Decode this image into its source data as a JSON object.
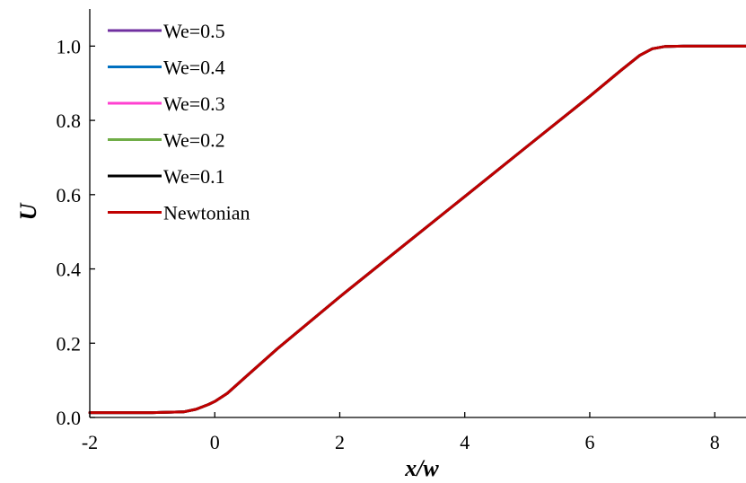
{
  "chart_data": {
    "type": "line",
    "title": "",
    "xlabel": "x/w",
    "ylabel": "U",
    "xlim": [
      -2,
      8.5
    ],
    "ylim": [
      0,
      1.1
    ],
    "xticks": [
      -2,
      0,
      2,
      4,
      6,
      8
    ],
    "yticks": [
      0.0,
      0.2,
      0.4,
      0.6,
      0.8,
      1.0
    ],
    "xtick_labels": [
      "-2",
      "0",
      "2",
      "4",
      "6",
      "8"
    ],
    "ytick_labels": [
      "0.0",
      "0.2",
      "0.4",
      "0.6",
      "0.8",
      "1.0"
    ],
    "grid": false,
    "legend_position": "top-left",
    "series": [
      {
        "name": "We=0.5",
        "color": "#7030a0",
        "x": [
          -2,
          -1,
          -0.5,
          -0.3,
          -0.1,
          0,
          0.2,
          0.5,
          1,
          2,
          3,
          4,
          5,
          6,
          6.5,
          6.8,
          7.0,
          7.2,
          7.5,
          8,
          8.5
        ],
        "y": [
          0.013,
          0.013,
          0.015,
          0.022,
          0.035,
          0.043,
          0.065,
          0.11,
          0.185,
          0.325,
          0.46,
          0.595,
          0.73,
          0.865,
          0.935,
          0.975,
          0.993,
          0.999,
          1.0,
          1.0,
          1.0
        ]
      },
      {
        "name": "We=0.4",
        "color": "#0070c0",
        "x": [
          -2,
          -1,
          -0.5,
          -0.3,
          -0.1,
          0,
          0.2,
          0.5,
          1,
          2,
          3,
          4,
          5,
          6,
          6.5,
          6.8,
          7.0,
          7.2,
          7.5,
          8,
          8.5
        ],
        "y": [
          0.013,
          0.013,
          0.015,
          0.022,
          0.035,
          0.043,
          0.065,
          0.11,
          0.185,
          0.325,
          0.46,
          0.595,
          0.73,
          0.865,
          0.935,
          0.975,
          0.993,
          0.999,
          1.0,
          1.0,
          1.0
        ]
      },
      {
        "name": "We=0.3",
        "color": "#ff40d0",
        "x": [
          -2,
          -1,
          -0.5,
          -0.3,
          -0.1,
          0,
          0.2,
          0.5,
          1,
          2,
          3,
          4,
          5,
          6,
          6.5,
          6.8,
          7.0,
          7.2,
          7.5,
          8,
          8.5
        ],
        "y": [
          0.013,
          0.013,
          0.015,
          0.022,
          0.035,
          0.043,
          0.065,
          0.11,
          0.185,
          0.325,
          0.46,
          0.595,
          0.73,
          0.865,
          0.935,
          0.975,
          0.993,
          0.999,
          1.0,
          1.0,
          1.0
        ]
      },
      {
        "name": "We=0.2",
        "color": "#70ad47",
        "x": [
          -2,
          -1,
          -0.5,
          -0.3,
          -0.1,
          0,
          0.2,
          0.5,
          1,
          2,
          3,
          4,
          5,
          6,
          6.5,
          6.8,
          7.0,
          7.2,
          7.5,
          8,
          8.5
        ],
        "y": [
          0.013,
          0.013,
          0.015,
          0.022,
          0.035,
          0.043,
          0.065,
          0.11,
          0.185,
          0.325,
          0.46,
          0.595,
          0.73,
          0.865,
          0.935,
          0.975,
          0.993,
          0.999,
          1.0,
          1.0,
          1.0
        ]
      },
      {
        "name": "We=0.1",
        "color": "#000000",
        "x": [
          -2,
          -1,
          -0.5,
          -0.3,
          -0.1,
          0,
          0.2,
          0.5,
          1,
          2,
          3,
          4,
          5,
          6,
          6.5,
          6.8,
          7.0,
          7.2,
          7.5,
          8,
          8.5
        ],
        "y": [
          0.013,
          0.013,
          0.015,
          0.022,
          0.035,
          0.043,
          0.065,
          0.11,
          0.185,
          0.325,
          0.46,
          0.595,
          0.73,
          0.865,
          0.935,
          0.975,
          0.993,
          0.999,
          1.0,
          1.0,
          1.0
        ]
      },
      {
        "name": "Newtonian",
        "color": "#c00000",
        "x": [
          -2,
          -1,
          -0.5,
          -0.3,
          -0.1,
          0,
          0.2,
          0.5,
          1,
          2,
          3,
          4,
          5,
          6,
          6.5,
          6.8,
          7.0,
          7.2,
          7.5,
          8,
          8.5
        ],
        "y": [
          0.013,
          0.013,
          0.015,
          0.022,
          0.035,
          0.043,
          0.065,
          0.11,
          0.185,
          0.325,
          0.46,
          0.595,
          0.73,
          0.865,
          0.935,
          0.975,
          0.993,
          0.999,
          1.0,
          1.0,
          1.0
        ]
      }
    ]
  }
}
